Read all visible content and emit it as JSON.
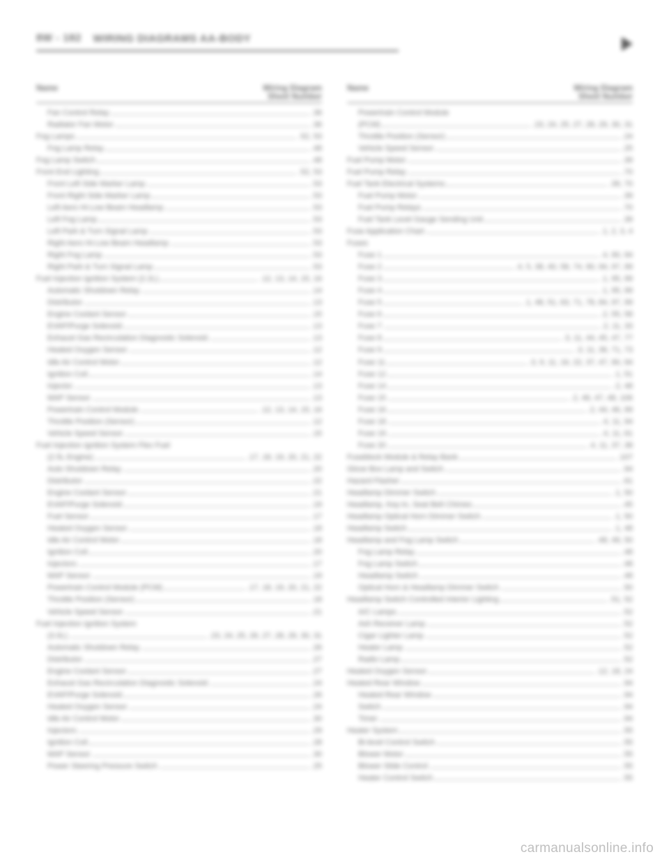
{
  "header": {
    "section_code": "8W - 182",
    "title": "WIRING DIAGRAMS AA-BODY"
  },
  "col_header": {
    "left": "Name",
    "right_line1": "Wiring Diagram",
    "right_line2": "Sheet Number"
  },
  "watermark": "carmanualsonline.info",
  "left_entries": [
    {
      "label": "Fan Control Relay",
      "num": ".36",
      "indent": true
    },
    {
      "label": "Radiator Fan Motor",
      "num": ".36",
      "indent": true
    },
    {
      "label": "Fog Lamps",
      "num": ".52, 53",
      "indent": false
    },
    {
      "label": "Fog Lamp Relay",
      "num": ".48",
      "indent": true
    },
    {
      "label": "Fog Lamp Switch",
      "num": ".48",
      "indent": false
    },
    {
      "label": "Front End Lighting",
      "num": ".52, 53",
      "indent": false
    },
    {
      "label": "Front Left Side Marker Lamp",
      "num": ".53",
      "indent": true
    },
    {
      "label": "Front Right Side Marker Lamp",
      "num": ".53",
      "indent": true
    },
    {
      "label": "Left Aero Hi-Low Beam Headlamp",
      "num": ".53",
      "indent": true
    },
    {
      "label": "Left Fog Lamp",
      "num": ".53",
      "indent": true
    },
    {
      "label": "Left Park & Turn Signal Lamp",
      "num": ".53",
      "indent": true
    },
    {
      "label": "Right Aero Hi-Low Beam Headlamp",
      "num": ".53",
      "indent": true
    },
    {
      "label": "Right Fog Lamp",
      "num": ".53",
      "indent": true
    },
    {
      "label": "Right Park & Turn Signal Lamp",
      "num": ".53",
      "indent": true
    },
    {
      "label": "Fuel Injection Ignition System (2.2L)",
      "num": ".12, 13, 14, 15, 16",
      "indent": false
    },
    {
      "label": "Automatic Shutdown Relay",
      "num": ".14",
      "indent": true
    },
    {
      "label": "Distributor",
      "num": ".13",
      "indent": true
    },
    {
      "label": "Engine Coolant Sensor",
      "num": ".15",
      "indent": true
    },
    {
      "label": "EVAP/Purge Solenoid",
      "num": ".13",
      "indent": true
    },
    {
      "label": "Exhaust Gas Recirculation Diagnostic Solenoid",
      "num": ".13",
      "indent": true
    },
    {
      "label": "Heated Oxygen Sensor",
      "num": ".12",
      "indent": true
    },
    {
      "label": "Idle Air Control Motor",
      "num": ".12",
      "indent": true
    },
    {
      "label": "Ignition Coil",
      "num": ".14",
      "indent": true
    },
    {
      "label": "Injector",
      "num": ".13",
      "indent": true
    },
    {
      "label": "MAP Sensor",
      "num": ".13",
      "indent": true
    },
    {
      "label": "Powertrain Control Module",
      "num": ".12, 13, 14, 15, 16",
      "indent": true
    },
    {
      "label": "Throttle Position (Sensor)",
      "num": ".12",
      "indent": true
    },
    {
      "label": "Vehicle Speed Sensor",
      "num": ".15",
      "indent": true
    },
    {
      "label": "Fuel Injection Ignition System Flex Fuel",
      "num": "",
      "indent": false
    },
    {
      "label": "(2.5L Engine)",
      "num": ".17, 18, 19, 20, 21, 22",
      "indent": true
    },
    {
      "label": "Auto Shutdown Relay",
      "num": ".20",
      "indent": true
    },
    {
      "label": "Distributor",
      "num": ".22",
      "indent": true
    },
    {
      "label": "Engine Coolant Sensor",
      "num": ".21",
      "indent": true
    },
    {
      "label": "EVAP/Purge Solenoid",
      "num": ".19",
      "indent": true
    },
    {
      "label": "Fuel Sensor",
      "num": ".17",
      "indent": true
    },
    {
      "label": "Heated Oxygen Sensor",
      "num": ".18",
      "indent": true
    },
    {
      "label": "Idle Air Control Motor",
      "num": ".18",
      "indent": true
    },
    {
      "label": "Ignition Coil",
      "num": ".20",
      "indent": true
    },
    {
      "label": "Injectors",
      "num": ".17",
      "indent": true
    },
    {
      "label": "MAP Sensor",
      "num": ".19",
      "indent": true
    },
    {
      "label": "Powertrain Control Module (PCM)",
      "num": ".17, 18, 19, 20, 21, 22",
      "indent": true
    },
    {
      "label": "Throttle Position (Sensor)",
      "num": ".18",
      "indent": true
    },
    {
      "label": "Vehicle Speed Sensor",
      "num": ".21",
      "indent": true
    },
    {
      "label": "Fuel Injection Ignition System",
      "num": "",
      "indent": false
    },
    {
      "label": "(3.0L)",
      "num": ".23, 24, 25, 26, 27, 28, 29, 30, 31",
      "indent": true
    },
    {
      "label": "Automatic Shutdown Relay",
      "num": ".26",
      "indent": true
    },
    {
      "label": "Distributor",
      "num": ".27",
      "indent": true
    },
    {
      "label": "Engine Coolant Sensor",
      "num": ".27",
      "indent": true
    },
    {
      "label": "Exhaust Gas Recirculation Diagnostic Solenoid",
      "num": ".24",
      "indent": true
    },
    {
      "label": "EVAP/Purge Solenoid",
      "num": ".26",
      "indent": true
    },
    {
      "label": "Heated Oxygen Sensor",
      "num": ".24",
      "indent": true
    },
    {
      "label": "Idle Air Control Motor",
      "num": ".30",
      "indent": true
    },
    {
      "label": "Injectors",
      "num": ".29",
      "indent": true
    },
    {
      "label": "Ignition Coil",
      "num": ".28",
      "indent": true
    },
    {
      "label": "MAP Sensor",
      "num": ".30",
      "indent": true
    },
    {
      "label": "Power Steering Pressure Switch",
      "num": ".25",
      "indent": true
    }
  ],
  "right_entries": [
    {
      "label": "Powertrain Control Module",
      "num": "",
      "indent": true
    },
    {
      "label": "(PCM)",
      "num": ".23, 24, 25, 27, 28, 29, 30, 31",
      "indent": true
    },
    {
      "label": "Throttle Position (Sensor)",
      "num": ".24",
      "indent": true
    },
    {
      "label": "Vehicle Speed Sensor",
      "num": ".25",
      "indent": true
    },
    {
      "label": "Fuel Pump Motor",
      "num": ".39",
      "indent": false
    },
    {
      "label": "Fuel Pump Relay",
      "num": ".70",
      "indent": false
    },
    {
      "label": "Fuel Tank Electrical Systems",
      "num": ".39, 70",
      "indent": false
    },
    {
      "label": "Fuel Pump Motor",
      "num": ".39",
      "indent": true
    },
    {
      "label": "Fuel Pump Relays",
      "num": ".70",
      "indent": true
    },
    {
      "label": "Fuel Tank Level Gauge Sending Unit",
      "num": ".39",
      "indent": true
    },
    {
      "label": "Fuse Application Chart",
      "num": ".1, 2, 3, 4",
      "indent": false
    },
    {
      "label": "Fuses",
      "num": "",
      "indent": false
    },
    {
      "label": "Fuse 1",
      "num": ".4, 90, 94",
      "indent": true
    },
    {
      "label": "Fuse 2",
      "num": ".4, 5, 38, 40, 58, 74, 90, 94, 97, 99",
      "indent": true
    },
    {
      "label": "Fuse 3",
      "num": ".1, 95, 99",
      "indent": true
    },
    {
      "label": "Fuse 4",
      "num": ".1, 95, 99",
      "indent": true
    },
    {
      "label": "Fuse 5",
      "num": ".1, 48, 51, 63, 71, 78, 84, 97, 99",
      "indent": true
    },
    {
      "label": "Fuse 6",
      "num": ".2, 55, 58",
      "indent": true
    },
    {
      "label": "Fuse 7",
      "num": ".2, 11, 33",
      "indent": true
    },
    {
      "label": "Fuse 8",
      "num": ".3, 11, 44, 45, 47, 77",
      "indent": true
    },
    {
      "label": "Fuse 9",
      "num": ".3, 11, 36, 71, 73",
      "indent": true
    },
    {
      "label": "Fuse 11",
      "num": ".3, 9, 11, 16, 22, 37, 47, 90, 94",
      "indent": true
    },
    {
      "label": "Fuse 12",
      "num": ".1, 51",
      "indent": true
    },
    {
      "label": "Fuse 14",
      "num": ".2, 48",
      "indent": true
    },
    {
      "label": "Fuse 15",
      "num": ".2, 46, 47, 48, 106",
      "indent": true
    },
    {
      "label": "Fuse 16",
      "num": ".2, 44, 46, 99",
      "indent": true
    },
    {
      "label": "Fuse 18",
      "num": ".4, 11, 94",
      "indent": true
    },
    {
      "label": "Fuse 19",
      "num": ".4, 11, 61",
      "indent": true
    },
    {
      "label": "Fuse 20",
      "num": ".4, 11, 37, 38",
      "indent": true
    },
    {
      "label": "Fuseblock Module & Relay Bank",
      "num": ".107",
      "indent": false
    },
    {
      "label": "Glove Box Lamp and Switch",
      "num": ".94",
      "indent": false
    },
    {
      "label": "Hazard Flasher",
      "num": ".61",
      "indent": false
    },
    {
      "label": "Headlamp Dimmer Switch",
      "num": ".1, 50",
      "indent": false
    },
    {
      "label": "Headlamp, Key-In, Seat Belt Chimes",
      "num": ".45",
      "indent": false
    },
    {
      "label": "Headlamp Optical Horn Dimmer Switch",
      "num": ".1, 50",
      "indent": false
    },
    {
      "label": "Headlamp Switch",
      "num": ".1, 48",
      "indent": false
    },
    {
      "label": "Headlamp and Fog Lamp Switch",
      "num": ".48, 49, 50",
      "indent": false
    },
    {
      "label": "Fog Lamp Relay",
      "num": ".48",
      "indent": true
    },
    {
      "label": "Fog Lamp Switch",
      "num": ".48",
      "indent": true
    },
    {
      "label": "Headlamp Switch",
      "num": ".48",
      "indent": true
    },
    {
      "label": "Optical Horn & Headlamp Dimmer Switch",
      "num": ".50",
      "indent": true
    },
    {
      "label": "Headlamp Switch Controlled Interior Lighting",
      "num": ".51, 52",
      "indent": false
    },
    {
      "label": "A/C Lamps",
      "num": ".52",
      "indent": true
    },
    {
      "label": "Ash Receiver Lamp",
      "num": ".52",
      "indent": true
    },
    {
      "label": "Cigar Lighter Lamp",
      "num": ".52",
      "indent": true
    },
    {
      "label": "Heater Lamp",
      "num": ".52",
      "indent": true
    },
    {
      "label": "Radio Lamp",
      "num": ".52",
      "indent": true
    },
    {
      "label": "Heated Oxygen Sensor",
      "num": ".12, 18, 24",
      "indent": false
    },
    {
      "label": "Heated Rear Window",
      "num": ".94",
      "indent": false
    },
    {
      "label": "Heated Rear Window",
      "num": ".94",
      "indent": true
    },
    {
      "label": "Switch",
      "num": ".94",
      "indent": true
    },
    {
      "label": "Timer",
      "num": ".94",
      "indent": true
    },
    {
      "label": "Heater System",
      "num": ".55",
      "indent": false
    },
    {
      "label": "Bi-level Control Switch",
      "num": ".55",
      "indent": true
    },
    {
      "label": "Blower Motor",
      "num": ".55",
      "indent": true
    },
    {
      "label": "Blower Slide Control",
      "num": ".55",
      "indent": true
    },
    {
      "label": "Heater Control Switch",
      "num": ".55",
      "indent": true
    }
  ]
}
